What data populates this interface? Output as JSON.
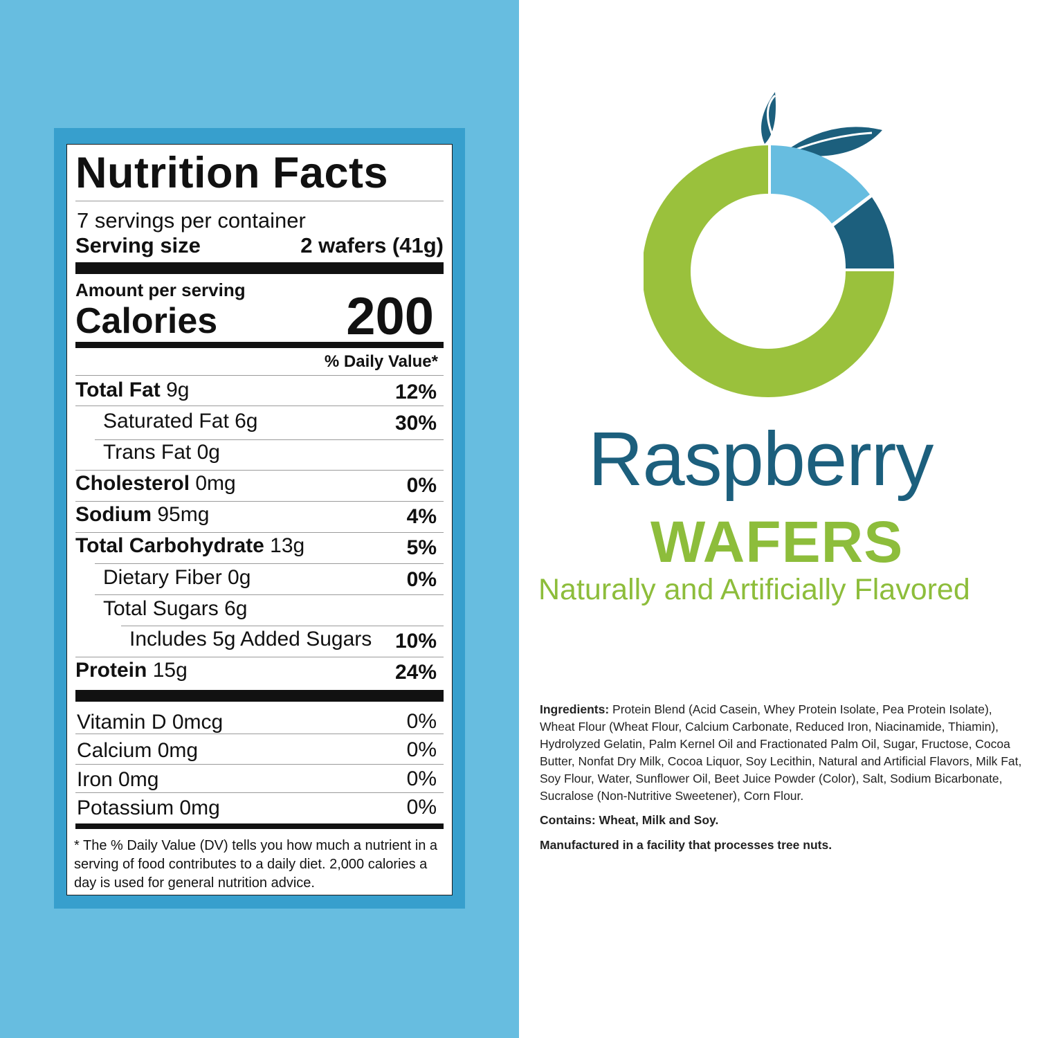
{
  "colors": {
    "panel_blue": "#67bde0",
    "frame_blue": "#379fcd",
    "brand_dark": "#1c5f7d",
    "brand_green": "#8dbd3b",
    "accent_light_blue": "#67bde0"
  },
  "nutrition": {
    "title": "Nutrition Facts",
    "servings_per_container": "7 servings per container",
    "serving_size_label": "Serving size",
    "serving_size_value": "2 wafers (41g)",
    "amount_per_serving": "Amount per serving",
    "calories_label": "Calories",
    "calories_value": "200",
    "daily_value_header": "% Daily Value*",
    "rows": [
      {
        "label": "Total Fat",
        "amount": "9g",
        "dv": "12%"
      },
      {
        "label": "Saturated Fat 6g",
        "amount": "",
        "dv": "30%"
      },
      {
        "label": "Trans Fat 0g",
        "amount": "",
        "dv": ""
      },
      {
        "label": "Cholesterol",
        "amount": "0mg",
        "dv": "0%"
      },
      {
        "label": "Sodium",
        "amount": "95mg",
        "dv": "4%"
      },
      {
        "label": "Total Carbohydrate",
        "amount": "13g",
        "dv": "5%"
      },
      {
        "label": "Dietary Fiber 0g",
        "amount": "",
        "dv": "0%"
      },
      {
        "label": "Total Sugars 6g",
        "amount": "",
        "dv": ""
      },
      {
        "label": "Includes 5g Added Sugars",
        "amount": "",
        "dv": "10%"
      },
      {
        "label": "Protein",
        "amount": "15g",
        "dv": "24%"
      }
    ],
    "vitamins": [
      {
        "label": "Vitamin D 0mcg",
        "dv": "0%"
      },
      {
        "label": "Calcium 0mg",
        "dv": "0%"
      },
      {
        "label": "Iron 0mg",
        "dv": "0%"
      },
      {
        "label": "Potassium 0mg",
        "dv": "0%"
      }
    ],
    "footnote": "* The % Daily Value (DV) tells you how much a nutrient in a serving of food contributes to a daily diet. 2,000 calories a day is used for general nutrition advice."
  },
  "product": {
    "brand": "Raspberry",
    "name": "WAFERS",
    "flavor_note": "Naturally and Artificially Flavored",
    "logo_icon": "fruit-donut-logo-icon"
  },
  "ingredients": {
    "label": "Ingredients:",
    "text": "Protein Blend (Acid Casein, Whey Protein Isolate, Pea Protein Isolate), Wheat Flour (Wheat Flour, Calcium Carbonate, Reduced Iron, Niacinamide, Thiamin), Hydrolyzed Gelatin, Palm Kernel Oil and Fractionated Palm Oil, Sugar, Fructose, Cocoa Butter, Nonfat Dry Milk, Cocoa Liquor, Soy Lecithin, Natural and Artificial Flavors, Milk Fat, Soy Flour, Water, Sunflower Oil, Beet Juice Powder (Color), Salt, Sodium Bicarbonate, Sucralose (Non-Nutritive Sweetener), Corn Flour.",
    "contains": "Contains: Wheat, Milk and Soy.",
    "facility": "Manufactured in a facility that processes tree nuts."
  }
}
